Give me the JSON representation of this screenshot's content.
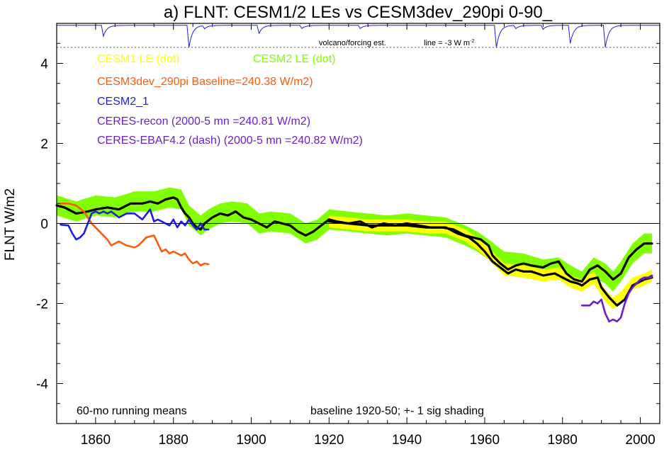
{
  "chart_data": {
    "type": "line",
    "title": "a) FLNT: CESM1/2 LEs vs CESM3dev_290pi 0-90_",
    "xlabel": "",
    "ylabel": "FLNT W/m2",
    "xlim": [
      1850,
      2005
    ],
    "ylim": [
      -5,
      5
    ],
    "x_ticks": [
      1860,
      1880,
      1900,
      1920,
      1940,
      1960,
      1980,
      2000
    ],
    "y_ticks": [
      4,
      2,
      0,
      -2,
      -4
    ],
    "grid": false,
    "zero_line": 0,
    "legend": [
      {
        "label": "CESM1 LE (dot)",
        "color": "#ffff00"
      },
      {
        "label": "CESM2 LE (dot)",
        "color": "#7fff00"
      },
      {
        "label": "CESM3dev_290pi Baseline=240.38 W/m2)",
        "color": "#ff5a0a"
      },
      {
        "label": "CESM2_1",
        "color": "#1e1ee6"
      },
      {
        "label": "CERES-recon (2000-5 mn =240.81 W/m2)",
        "color": "#6e1ec8"
      },
      {
        "label": "CERES-EBAF4.2 (dash) (2000-5 mn =240.82 W/m2)",
        "color": "#6e1ec8"
      }
    ],
    "annotations": {
      "volcano": "volcano/forcing est.",
      "line_note": "line = -3 W m",
      "line_note_sup": "-2",
      "bottom_left": "60-mo running means",
      "bottom_right": "baseline 1920-50; +- 1 sig shading"
    },
    "volcano_reference_y": 4.4,
    "series": [
      {
        "name": "CESM2 LE (dot)",
        "kind": "band",
        "color": "#7fff00",
        "x": [
          1850,
          1855,
          1860,
          1865,
          1870,
          1875,
          1879,
          1882,
          1884,
          1887,
          1889,
          1892,
          1895,
          1899,
          1902,
          1905,
          1910,
          1914,
          1917,
          1920,
          1925,
          1930,
          1935,
          1940,
          1945,
          1950,
          1955,
          1958,
          1961,
          1963,
          1965,
          1970,
          1975,
          1979,
          1982,
          1985,
          1988,
          1991,
          1993,
          1995,
          1998,
          2001,
          2003
        ],
        "mean": [
          0.45,
          0.3,
          0.45,
          0.4,
          0.55,
          0.55,
          0.65,
          0.6,
          0.2,
          -0.05,
          0.1,
          0.25,
          0.3,
          0.25,
          0.0,
          0.05,
          0.0,
          -0.25,
          -0.15,
          0.1,
          0.05,
          0.0,
          -0.05,
          0.0,
          -0.05,
          -0.1,
          -0.3,
          -0.45,
          -0.65,
          -0.8,
          -0.95,
          -1.0,
          -1.15,
          -1.1,
          -1.3,
          -1.45,
          -1.1,
          -1.25,
          -1.45,
          -1.2,
          -0.75,
          -0.5,
          -0.5
        ],
        "sigma": 0.25
      },
      {
        "name": "CESM1 LE (dot)",
        "kind": "band",
        "color": "#ffff00",
        "x": [
          1920,
          1925,
          1930,
          1935,
          1940,
          1945,
          1950,
          1955,
          1958,
          1961,
          1963,
          1965,
          1970,
          1975,
          1979,
          1982,
          1985,
          1988,
          1991,
          1993,
          1995,
          1998,
          2001,
          2003
        ],
        "mean": [
          0.05,
          0.0,
          -0.05,
          -0.05,
          -0.05,
          -0.1,
          -0.1,
          -0.3,
          -0.5,
          -0.75,
          -0.95,
          -1.15,
          -1.2,
          -1.3,
          -1.25,
          -1.45,
          -1.55,
          -1.35,
          -1.8,
          -2.0,
          -1.85,
          -1.5,
          -1.4,
          -1.3
        ],
        "sigma": 0.15
      },
      {
        "name": "CESM2 LE ensemble mean",
        "kind": "line",
        "color": "#000000",
        "x": [
          1850,
          1852,
          1855,
          1858,
          1860,
          1863,
          1866,
          1869,
          1872,
          1874,
          1876,
          1878,
          1880,
          1881,
          1882,
          1883,
          1884,
          1885,
          1886,
          1887,
          1888,
          1890,
          1892,
          1894,
          1896,
          1898,
          1900,
          1902,
          1904,
          1906,
          1908,
          1910,
          1912,
          1914,
          1916,
          1918,
          1920,
          1922,
          1925,
          1928,
          1931,
          1934,
          1937,
          1940,
          1943,
          1946,
          1949,
          1952,
          1955,
          1957,
          1959,
          1961,
          1962,
          1963,
          1964,
          1966,
          1968,
          1970,
          1972,
          1975,
          1977,
          1979,
          1981,
          1983,
          1985,
          1986,
          1987,
          1989,
          1991,
          1992,
          1993,
          1995,
          1997,
          1999,
          2001,
          2003
        ],
        "y": [
          0.45,
          0.4,
          0.25,
          0.3,
          0.35,
          0.4,
          0.35,
          0.5,
          0.5,
          0.55,
          0.5,
          0.6,
          0.65,
          0.6,
          0.4,
          0.25,
          0.15,
          0.0,
          -0.1,
          -0.15,
          0.0,
          0.15,
          0.25,
          0.2,
          0.3,
          0.15,
          0.1,
          0.0,
          -0.1,
          0.05,
          0.0,
          -0.05,
          -0.2,
          -0.3,
          -0.2,
          -0.05,
          0.1,
          0.05,
          0.0,
          0.05,
          -0.1,
          0.0,
          -0.05,
          0.0,
          -0.05,
          -0.1,
          -0.1,
          -0.15,
          -0.3,
          -0.35,
          -0.4,
          -0.55,
          -0.8,
          -0.9,
          -1.0,
          -1.15,
          -1.05,
          -1.0,
          -1.05,
          -1.1,
          -1.0,
          -0.95,
          -1.25,
          -1.4,
          -1.45,
          -1.3,
          -1.15,
          -1.05,
          -1.2,
          -1.3,
          -1.4,
          -1.25,
          -0.85,
          -0.65,
          -0.5,
          -0.5
        ]
      },
      {
        "name": "CESM1 LE ensemble mean",
        "kind": "line",
        "color": "#000000",
        "x": [
          1920,
          1925,
          1930,
          1935,
          1940,
          1945,
          1950,
          1953,
          1956,
          1958,
          1960,
          1962,
          1964,
          1966,
          1968,
          1970,
          1972,
          1975,
          1978,
          1980,
          1982,
          1984,
          1985,
          1987,
          1989,
          1990,
          1992,
          1994,
          1996,
          1998,
          2001,
          2003
        ],
        "y": [
          0.05,
          0.0,
          -0.05,
          -0.05,
          -0.05,
          -0.1,
          -0.1,
          -0.25,
          -0.35,
          -0.5,
          -0.7,
          -0.95,
          -1.1,
          -1.25,
          -1.15,
          -1.2,
          -1.2,
          -1.3,
          -1.25,
          -1.35,
          -1.45,
          -1.5,
          -1.55,
          -1.4,
          -1.35,
          -1.6,
          -1.85,
          -2.05,
          -1.9,
          -1.55,
          -1.4,
          -1.35
        ]
      },
      {
        "name": "CESM3dev_290pi Baseline=240.38 W/m2)",
        "kind": "line",
        "color": "#ff5a0a",
        "x": [
          1851,
          1853,
          1855,
          1857,
          1859,
          1861,
          1863,
          1864,
          1866,
          1868,
          1870,
          1871,
          1873,
          1875,
          1876,
          1877,
          1878,
          1879,
          1880,
          1881,
          1882,
          1883,
          1884,
          1885,
          1886,
          1887,
          1888,
          1889
        ],
        "y": [
          0.5,
          0.5,
          0.45,
          0.3,
          0.0,
          -0.2,
          -0.4,
          -0.55,
          -0.45,
          -0.55,
          -0.6,
          -0.55,
          -0.35,
          -0.3,
          -0.5,
          -0.7,
          -0.65,
          -0.75,
          -0.7,
          -0.75,
          -0.8,
          -0.75,
          -0.9,
          -1.0,
          -0.95,
          -1.05,
          -1.0,
          -1.02
        ]
      },
      {
        "name": "CESM2_1",
        "kind": "line",
        "color": "#1e1ee6",
        "x": [
          1851,
          1853,
          1854,
          1855,
          1856,
          1857,
          1858,
          1859,
          1860,
          1861,
          1862,
          1863,
          1864,
          1866,
          1868,
          1870,
          1872,
          1874,
          1875,
          1876,
          1877,
          1878,
          1879,
          1880,
          1881,
          1882,
          1883,
          1884,
          1885,
          1886,
          1887,
          1888,
          1889
        ],
        "y": [
          -0.03,
          -0.05,
          -0.25,
          -0.4,
          -0.35,
          -0.25,
          0.0,
          0.25,
          0.3,
          0.25,
          0.3,
          0.25,
          0.3,
          0.15,
          0.25,
          0.25,
          0.1,
          0.35,
          0.05,
          0.1,
          0.05,
          0.0,
          -0.05,
          0.1,
          -0.1,
          0.05,
          -0.05,
          0.1,
          -0.05,
          -0.15,
          0.0,
          -0.15,
          -0.15
        ]
      },
      {
        "name": "CERES-recon (2000-5 mn =240.81 W/m2)",
        "kind": "line",
        "color": "#6e1ec8",
        "x": [
          1985,
          1987,
          1988,
          1989,
          1990,
          1991,
          1992,
          1993,
          1994,
          1995,
          1996,
          1997,
          1998,
          1999,
          2000,
          2001,
          2002,
          2003
        ],
        "y": [
          -2.05,
          -2.05,
          -1.95,
          -2.0,
          -1.9,
          -2.25,
          -2.45,
          -2.4,
          -2.45,
          -2.35,
          -2.0,
          -1.75,
          -1.6,
          -1.5,
          -1.4,
          -1.35,
          -1.35,
          -1.3
        ]
      },
      {
        "name": "CERES-EBAF4.2 (dash) (2000-5 mn =240.82 W/m2)",
        "kind": "line",
        "dashed": true,
        "color": "#6e1ec8",
        "x": [
          2000,
          2001,
          2002,
          2003
        ],
        "y": [
          -1.4,
          -1.38,
          -1.36,
          -1.35
        ]
      }
    ],
    "volcano_dips": [
      {
        "year": 1862,
        "depth": 0.27
      },
      {
        "year": 1884,
        "depth": 0.55
      },
      {
        "year": 1888,
        "depth": 0.08
      },
      {
        "year": 1902,
        "depth": 0.2
      },
      {
        "year": 1913,
        "depth": 0.08
      },
      {
        "year": 1928,
        "depth": 0.08
      },
      {
        "year": 1963,
        "depth": 0.55
      },
      {
        "year": 1968,
        "depth": 0.08
      },
      {
        "year": 1975,
        "depth": 0.1
      },
      {
        "year": 1982,
        "depth": 0.45
      },
      {
        "year": 1991,
        "depth": 0.55
      }
    ],
    "volcano_top": 4.95,
    "volcano_depth_unit": 1
  }
}
